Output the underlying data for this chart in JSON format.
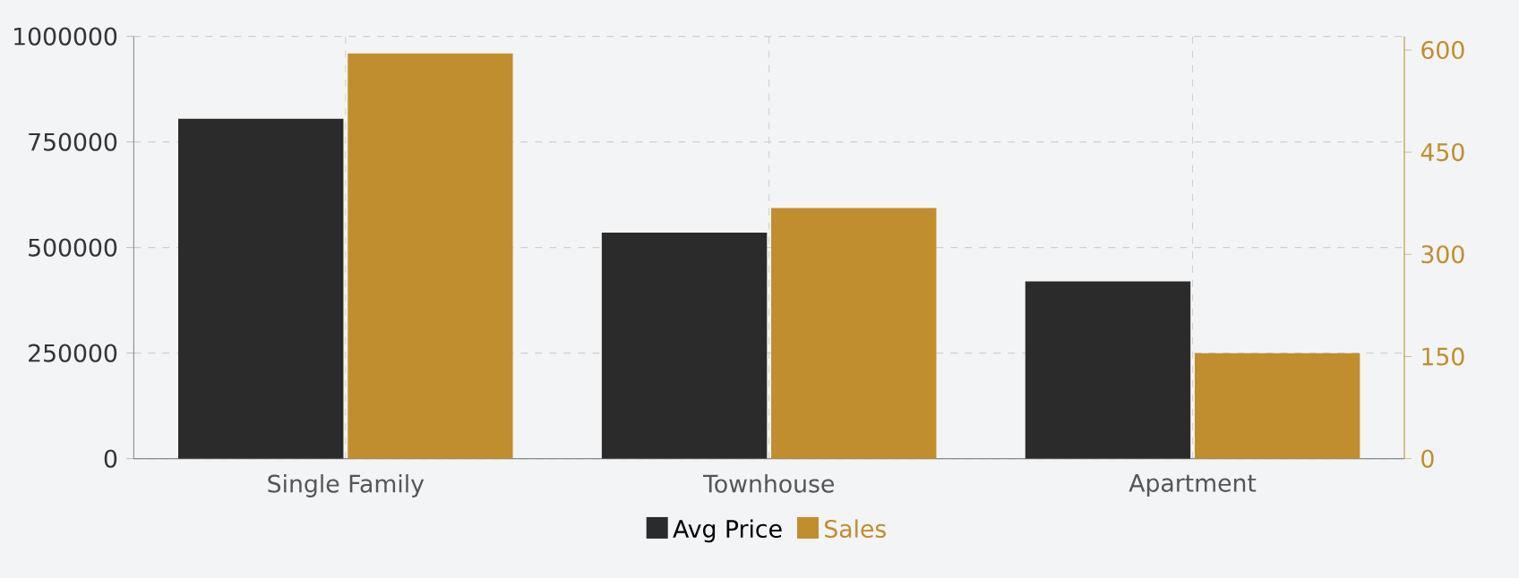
{
  "chart_data": {
    "type": "bar",
    "categories": [
      "Single Family",
      "Townhouse",
      "Apartment"
    ],
    "series": [
      {
        "name": "Avg Price",
        "color": "#2b2b2b",
        "values": [
          805000,
          535000,
          420000
        ]
      },
      {
        "name": "Sales",
        "color": "#c08e2e",
        "values": [
          595,
          368,
          155
        ],
        "axis": "y2"
      }
    ],
    "ylim": [
      0,
      1000000
    ],
    "yticks": [
      0,
      250000,
      500000,
      750000,
      1000000
    ],
    "y2lim": [
      0,
      620
    ],
    "y2ticks": [
      0,
      150,
      300,
      450,
      600
    ],
    "grid": true,
    "legend": "bottom"
  }
}
